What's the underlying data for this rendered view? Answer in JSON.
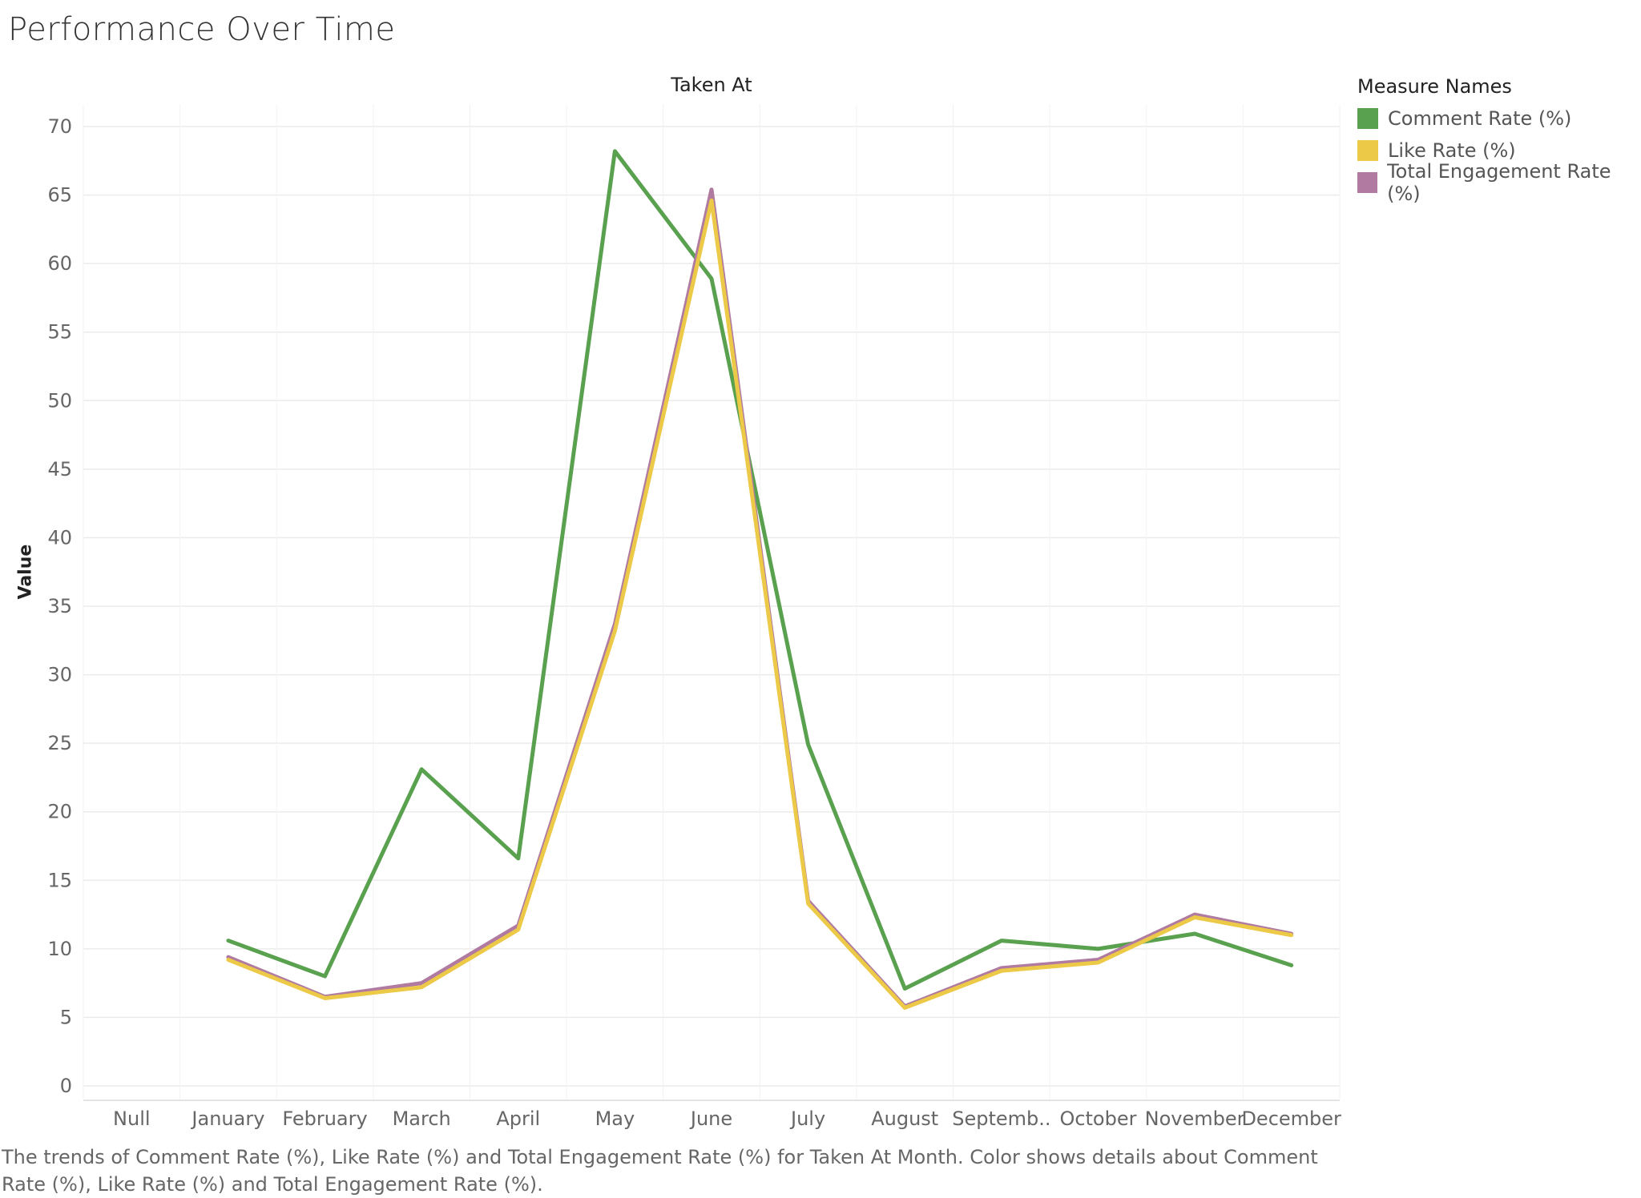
{
  "title": "Performance Over Time",
  "caption": "The trends of Comment Rate (%), Like Rate (%) and Total Engagement Rate (%) for Taken At Month.  Color shows details about Comment Rate (%), Like Rate (%) and Total Engagement Rate (%).",
  "legend": {
    "title": "Measure Names",
    "items": [
      {
        "label": "Comment Rate (%)",
        "color": "#59a14f"
      },
      {
        "label": "Like Rate (%)",
        "color": "#edc948"
      },
      {
        "label": "Total Engagement Rate (%)",
        "color": "#b07aa1"
      }
    ]
  },
  "chart_data": {
    "type": "line",
    "column_header": "Taken At",
    "ylabel": "Value",
    "ylim": [
      0,
      70
    ],
    "yticks": [
      0,
      5,
      10,
      15,
      20,
      25,
      30,
      35,
      40,
      45,
      50,
      55,
      60,
      65,
      70
    ],
    "categories": [
      "Null",
      "January",
      "February",
      "March",
      "April",
      "May",
      "June",
      "July",
      "August",
      "Septemb..",
      "October",
      "November",
      "December"
    ],
    "grid": true,
    "legend_position": "top-right",
    "series": [
      {
        "name": "Comment Rate (%)",
        "color": "#59a14f",
        "values": [
          null,
          10.6,
          8.0,
          23.1,
          16.6,
          68.2,
          58.9,
          24.9,
          7.1,
          10.6,
          10.0,
          11.1,
          8.8
        ]
      },
      {
        "name": "Total Engagement Rate (%)",
        "color": "#b07aa1",
        "values": [
          null,
          9.4,
          6.5,
          7.5,
          11.7,
          33.7,
          65.4,
          13.5,
          5.8,
          8.6,
          9.2,
          12.5,
          11.1
        ]
      },
      {
        "name": "Like Rate (%)",
        "color": "#edc948",
        "values": [
          null,
          9.2,
          6.4,
          7.2,
          11.4,
          33.2,
          64.6,
          13.3,
          5.7,
          8.4,
          9.0,
          12.3,
          11.0
        ]
      }
    ]
  }
}
